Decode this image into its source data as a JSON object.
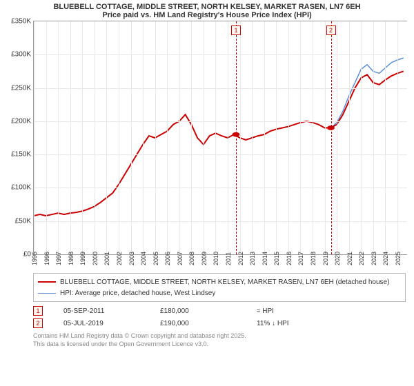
{
  "title_line1": "BLUEBELL COTTAGE, MIDDLE STREET, NORTH KELSEY, MARKET RASEN, LN7 6EH",
  "title_line2": "Price paid vs. HM Land Registry's House Price Index (HPI)",
  "title_fontsize": 12,
  "chart": {
    "type": "line",
    "background_color": "#ffffff",
    "grid_color": "#e8e8e8",
    "axis_color": "#999999",
    "x_years": [
      1995,
      1996,
      1997,
      1998,
      1999,
      2000,
      2001,
      2002,
      2003,
      2004,
      2005,
      2006,
      2007,
      2008,
      2009,
      2010,
      2011,
      2012,
      2013,
      2014,
      2015,
      2016,
      2017,
      2018,
      2019,
      2020,
      2021,
      2022,
      2023,
      2024,
      2025
    ],
    "xlim": [
      1995,
      2025.8
    ],
    "ylim": [
      0,
      350
    ],
    "y_ticks": [
      0,
      50,
      100,
      150,
      200,
      250,
      300,
      350
    ],
    "y_tick_labels": [
      "£0",
      "£50K",
      "£100K",
      "£150K",
      "£200K",
      "£250K",
      "£300K",
      "£350K"
    ],
    "y_tick_fontsize": 10,
    "x_tick_fontsize": 9,
    "series": {
      "property": {
        "label": "BLUEBELL COTTAGE, MIDDLE STREET, NORTH KELSEY, MARKET RASEN, LN7 6EH (detached house)",
        "color": "#cc0000",
        "line_width": 2,
        "data": [
          [
            1995,
            58
          ],
          [
            1995.5,
            60
          ],
          [
            1996,
            58
          ],
          [
            1996.5,
            60
          ],
          [
            1997,
            62
          ],
          [
            1997.5,
            60
          ],
          [
            1998,
            62
          ],
          [
            1998.5,
            63
          ],
          [
            1999,
            65
          ],
          [
            1999.5,
            68
          ],
          [
            2000,
            72
          ],
          [
            2000.5,
            78
          ],
          [
            2001,
            85
          ],
          [
            2001.5,
            92
          ],
          [
            2002,
            105
          ],
          [
            2002.5,
            120
          ],
          [
            2003,
            135
          ],
          [
            2003.5,
            150
          ],
          [
            2004,
            165
          ],
          [
            2004.5,
            178
          ],
          [
            2005,
            175
          ],
          [
            2005.5,
            180
          ],
          [
            2006,
            185
          ],
          [
            2006.5,
            195
          ],
          [
            2007,
            200
          ],
          [
            2007.5,
            210
          ],
          [
            2008,
            195
          ],
          [
            2008.5,
            175
          ],
          [
            2009,
            165
          ],
          [
            2009.5,
            178
          ],
          [
            2010,
            182
          ],
          [
            2010.5,
            178
          ],
          [
            2011,
            175
          ],
          [
            2011.5,
            180
          ],
          [
            2012,
            175
          ],
          [
            2012.5,
            172
          ],
          [
            2013,
            175
          ],
          [
            2013.5,
            178
          ],
          [
            2014,
            180
          ],
          [
            2014.5,
            185
          ],
          [
            2015,
            188
          ],
          [
            2015.5,
            190
          ],
          [
            2016,
            192
          ],
          [
            2016.5,
            195
          ],
          [
            2017,
            198
          ],
          [
            2017.5,
            200
          ],
          [
            2018,
            198
          ],
          [
            2018.5,
            195
          ],
          [
            2019,
            190
          ],
          [
            2019.5,
            190
          ],
          [
            2020,
            195
          ],
          [
            2020.5,
            210
          ],
          [
            2021,
            230
          ],
          [
            2021.5,
            250
          ],
          [
            2022,
            265
          ],
          [
            2022.5,
            270
          ],
          [
            2023,
            258
          ],
          [
            2023.5,
            255
          ],
          [
            2024,
            262
          ],
          [
            2024.5,
            268
          ],
          [
            2025,
            272
          ],
          [
            2025.5,
            275
          ]
        ]
      },
      "hpi": {
        "label": "HPI: Average price, detached house, West Lindsey",
        "color": "#5b8fd6",
        "line_width": 1.5,
        "data": [
          [
            2019.5,
            190
          ],
          [
            2020,
            198
          ],
          [
            2020.5,
            215
          ],
          [
            2021,
            238
          ],
          [
            2021.5,
            258
          ],
          [
            2022,
            278
          ],
          [
            2022.5,
            285
          ],
          [
            2023,
            275
          ],
          [
            2023.5,
            272
          ],
          [
            2024,
            280
          ],
          [
            2024.5,
            288
          ],
          [
            2025,
            292
          ],
          [
            2025.5,
            295
          ]
        ]
      }
    },
    "markers": [
      {
        "x": 2011.68,
        "y": 180,
        "color": "#cc0000",
        "size": 5
      },
      {
        "x": 2019.51,
        "y": 190,
        "color": "#cc0000",
        "size": 5
      }
    ],
    "events": [
      {
        "n": "1",
        "x": 2011.68,
        "color": "#cc0000",
        "date": "05-SEP-2011",
        "price": "£180,000",
        "change": "≈ HPI"
      },
      {
        "n": "2",
        "x": 2019.51,
        "color": "#cc0000",
        "date": "05-JUL-2019",
        "price": "£190,000",
        "change": "11% ↓ HPI"
      }
    ]
  },
  "legend": {
    "border_color": "#bbbbbb",
    "fontsize": 10
  },
  "attribution_line1": "Contains HM Land Registry data © Crown copyright and database right 2025.",
  "attribution_line2": "This data is licensed under the Open Government Licence v3.0.",
  "attribution_color": "#888888",
  "attribution_fontsize": 9
}
